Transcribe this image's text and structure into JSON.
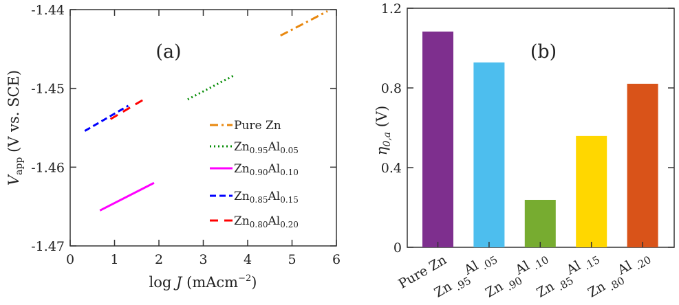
{
  "chart_data": [
    {
      "type": "line",
      "panel_label": "(a)",
      "xlabel": {
        "main": "log ",
        "var": "J",
        "unit": " (mAcm",
        "sup": "−2",
        "close": ")"
      },
      "ylabel": {
        "var": "V",
        "sub": "app",
        "rest": " (V vs. SCE)"
      },
      "xlim": [
        0,
        6
      ],
      "ylim": [
        -1.47,
        -1.44
      ],
      "xticks": [
        "0",
        "1",
        "2",
        "3",
        "4",
        "5",
        "6"
      ],
      "yticks": [
        "-1.47",
        "-1.46",
        "-1.45",
        "-1.44"
      ],
      "legend_position": "right-center",
      "series": [
        {
          "name": "Pure Zn",
          "base": "Pure Zn",
          "color": "#E8870E",
          "style": "dashdot",
          "x": [
            4.74,
            5.8
          ],
          "y": [
            -1.4433,
            -1.4402
          ]
        },
        {
          "name": "Zn0.95Al0.05",
          "base": "Zn",
          "s1": "0.95",
          "mid": "Al",
          "s2": "0.05",
          "color": "#008A00",
          "style": "dotted",
          "x": [
            2.65,
            3.71
          ],
          "y": [
            -1.4514,
            -1.4483
          ]
        },
        {
          "name": "Zn0.90Al0.10",
          "base": "Zn",
          "s1": "0.90",
          "mid": "Al",
          "s2": "0.10",
          "color": "#FF00FF",
          "style": "solid",
          "x": [
            0.67,
            1.89
          ],
          "y": [
            -1.4655,
            -1.462
          ]
        },
        {
          "name": "Zn0.85Al0.15",
          "base": "Zn",
          "s1": "0.85",
          "mid": "Al",
          "s2": "0.15",
          "color": "#0000FF",
          "style": "dashed",
          "x": [
            0.33,
            1.31
          ],
          "y": [
            -1.4554,
            -1.4522
          ]
        },
        {
          "name": "Zn0.80Al0.20",
          "base": "Zn",
          "s1": "0.80",
          "mid": "Al",
          "s2": "0.20",
          "color": "#FF0000",
          "style": "longdash",
          "x": [
            0.91,
            1.75
          ],
          "y": [
            -1.4539,
            -1.4511
          ]
        }
      ]
    },
    {
      "type": "bar",
      "panel_label": "(b)",
      "ylabel": {
        "var": "η",
        "sub": "0,a",
        "rest": " (V)"
      },
      "ylim": [
        0,
        1.2
      ],
      "yticks": [
        "0",
        "0.4",
        "0.8",
        "1.2"
      ],
      "categories": [
        {
          "label": "Pure Zn"
        },
        {
          "a": "Zn",
          "s1": ".95",
          "b": "Al",
          "s2": ".05"
        },
        {
          "a": "Zn",
          "s1": ".90",
          "b": "Al",
          "s2": ".10"
        },
        {
          "a": "Zn",
          "s1": ".85",
          "b": "Al",
          "s2": ".15"
        },
        {
          "a": "Zn",
          "s1": ".80",
          "b": "Al",
          "s2": ".20"
        }
      ],
      "values": [
        1.083,
        0.928,
        0.238,
        0.559,
        0.821
      ],
      "colors": [
        "#7E2F8E",
        "#4DBEEE",
        "#77AC30",
        "#FFD700",
        "#D95319"
      ]
    }
  ]
}
